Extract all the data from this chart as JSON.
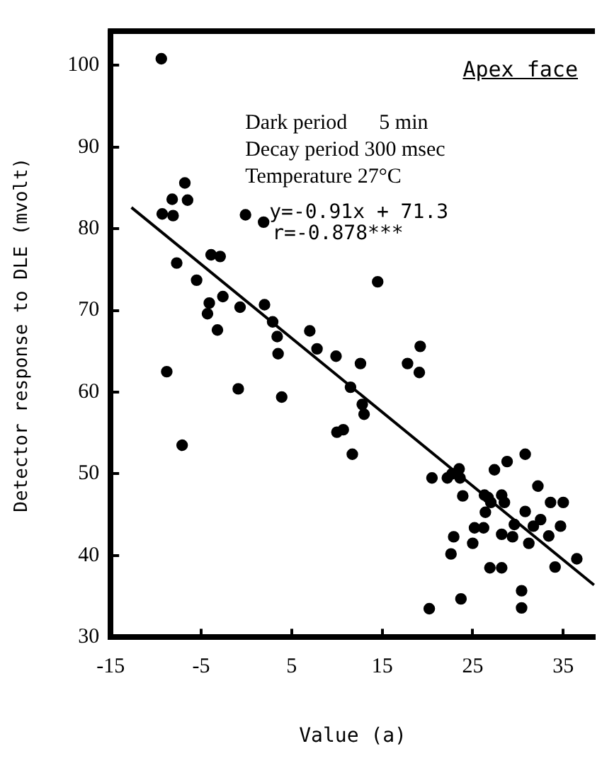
{
  "chart_data": {
    "type": "scatter",
    "xlabel": "Value (a)",
    "ylabel": "Detector response to DLE (mvolt)",
    "xlim": [
      -15,
      38.5
    ],
    "ylim": [
      30,
      104
    ],
    "xticks": [
      -15,
      -5,
      5,
      15,
      25,
      35
    ],
    "yticks": [
      30,
      40,
      50,
      60,
      70,
      80,
      90,
      100
    ],
    "grid": false,
    "legend": false,
    "marker": "circle",
    "annotations": [
      "Apex face",
      "Dark period      5 min",
      "Decay period 300 msec",
      "Temperature 27°C",
      "y=-0.91x + 71.3",
      "r=-0.878***"
    ],
    "series": [
      {
        "color": "#000000",
        "x": [
          -9.4,
          -9.3,
          -8.1,
          -8.2,
          -6.8,
          -6.5,
          -7.7,
          -5.5,
          -3.9,
          -2.9,
          -4.1,
          -4.3,
          -3.2,
          -2.6,
          -0.7,
          -0.1,
          1.9,
          2.0,
          2.9,
          3.4,
          3.5,
          7.0,
          -8.8,
          -7.1,
          -0.9,
          3.9,
          7.8,
          9.9,
          12.6,
          11.5,
          12.8,
          13.0,
          10.0,
          10.7,
          11.7,
          17.8,
          19.1,
          19.2,
          14.5,
          20.5,
          22.2,
          22.7,
          23.5,
          23.6,
          23.9,
          22.9,
          22.6,
          25.0,
          25.2,
          26.2,
          23.7,
          20.2,
          26.3,
          26.7,
          26.4,
          27.0,
          27.4,
          28.2,
          28.5,
          28.8,
          30.8,
          32.2,
          30.8,
          28.2,
          29.4,
          29.6,
          31.2,
          31.7,
          32.5,
          33.4,
          33.6,
          35.0,
          34.7,
          36.5,
          34.1,
          26.9,
          28.2,
          30.4,
          30.4
        ],
        "values": [
          100.8,
          81.8,
          81.6,
          83.6,
          85.6,
          83.5,
          75.8,
          73.7,
          76.8,
          76.6,
          70.9,
          69.6,
          67.6,
          71.7,
          70.4,
          81.7,
          80.8,
          70.7,
          68.6,
          66.8,
          64.7,
          67.5,
          62.5,
          53.5,
          60.4,
          59.4,
          65.3,
          64.4,
          63.5,
          60.6,
          58.5,
          57.3,
          55.1,
          55.4,
          52.4,
          63.5,
          62.4,
          65.6,
          73.5,
          49.5,
          49.5,
          50.0,
          50.6,
          49.5,
          47.3,
          42.3,
          40.2,
          41.5,
          43.4,
          43.4,
          34.7,
          33.5,
          47.4,
          47.1,
          45.3,
          46.5,
          50.5,
          47.4,
          46.5,
          51.5,
          52.4,
          48.5,
          45.4,
          42.6,
          42.3,
          43.8,
          41.5,
          43.6,
          44.4,
          42.4,
          46.5,
          46.5,
          43.6,
          39.6,
          38.6,
          38.5,
          38.5,
          35.7,
          33.6
        ]
      },
      {
        "type": "line",
        "color": "#000000",
        "marker": "none",
        "x": [
          -12.7,
          38.4
        ],
        "values": [
          82.6,
          36.4
        ]
      }
    ]
  }
}
